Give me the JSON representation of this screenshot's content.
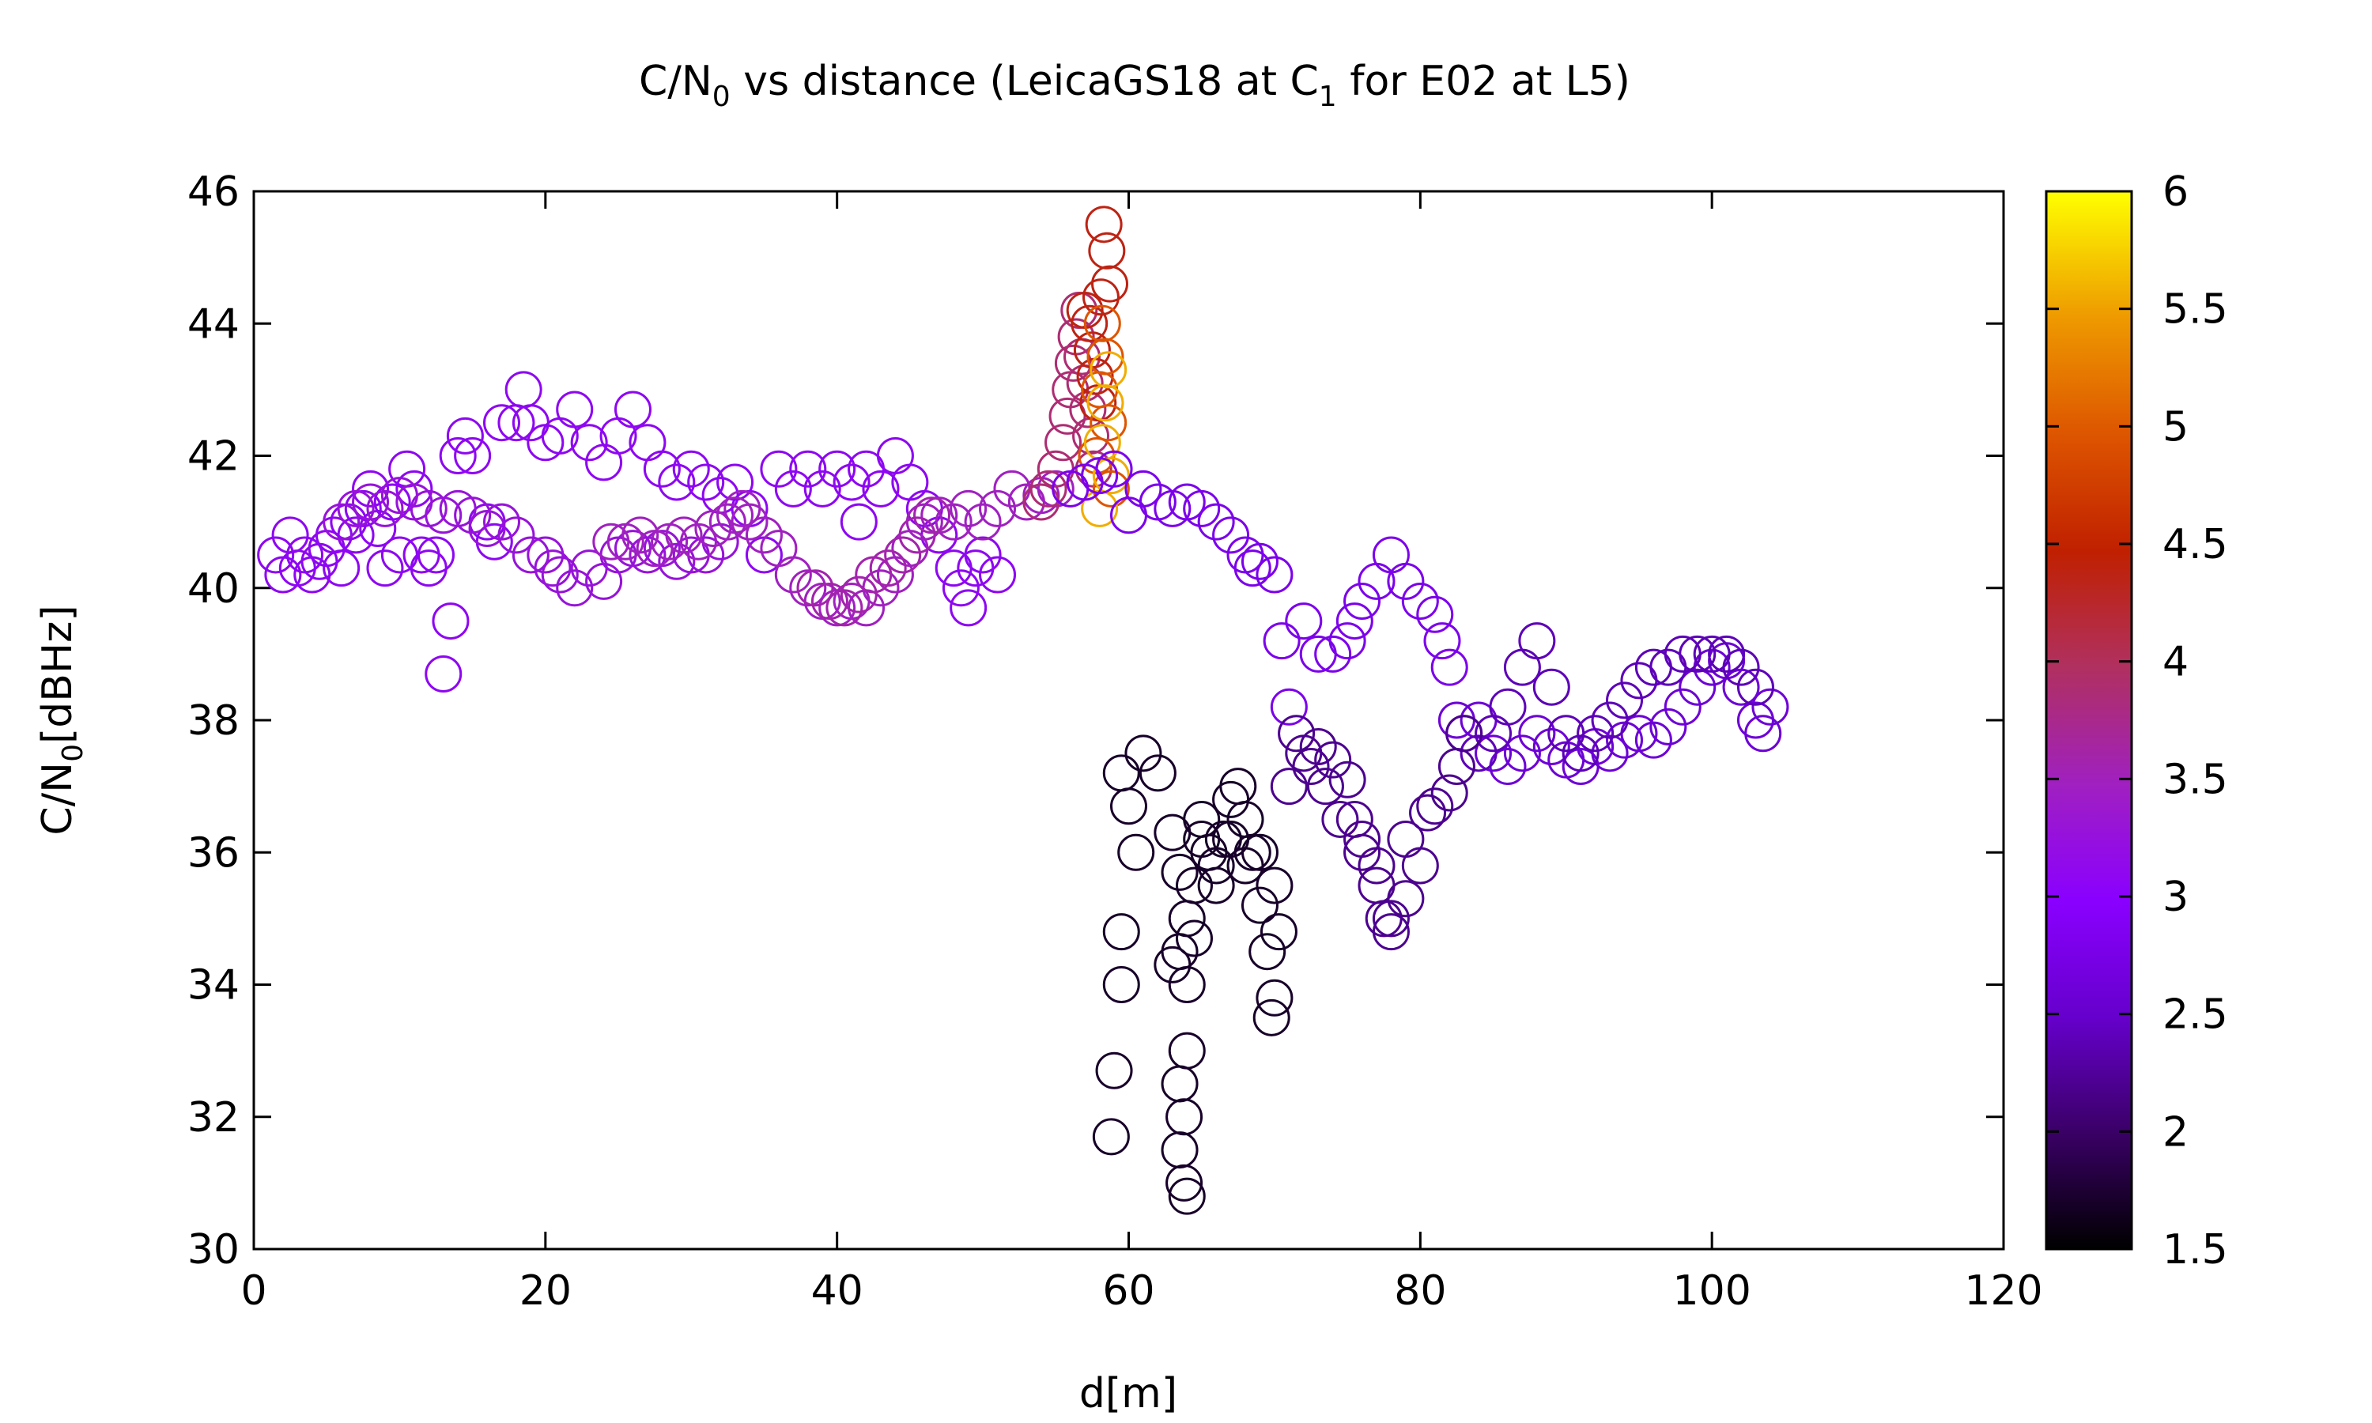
{
  "chart_data": {
    "type": "scatter",
    "title": {
      "main": "C/N",
      "sub1": "0",
      "mid": " vs distance (LeicaGS18 at C",
      "sub2": "1",
      "end": " for E02 at L5)"
    },
    "xlabel": "d[m]",
    "ylabel": {
      "main": "C/N",
      "sub": "0",
      "end": "[dBHz]"
    },
    "xlim": [
      0,
      120
    ],
    "ylim": [
      30,
      46
    ],
    "x_ticks": [
      "0",
      "20",
      "40",
      "60",
      "80",
      "100",
      "120"
    ],
    "y_ticks": [
      "30",
      "32",
      "34",
      "36",
      "38",
      "40",
      "42",
      "44",
      "46"
    ],
    "colorbar": {
      "range": [
        1.5,
        6
      ],
      "ticks": [
        "1.5",
        "2",
        "2.5",
        "3",
        "3.5",
        "4",
        "4.5",
        "5",
        "5.5",
        "6"
      ],
      "palette": [
        "#000000",
        "#3a0066",
        "#6600cc",
        "#8a00ff",
        "#a020c0",
        "#b03060",
        "#c02000",
        "#dd5500",
        "#ee9900",
        "#ffff00"
      ]
    },
    "marker": "open-circle",
    "grid": false,
    "points": [
      [
        1.5,
        40.5,
        3.1
      ],
      [
        2,
        40.2,
        3.1
      ],
      [
        2.5,
        40.8,
        3.1
      ],
      [
        3,
        40.3,
        3.1
      ],
      [
        3.5,
        40.5,
        3.1
      ],
      [
        4,
        40.2,
        3.1
      ],
      [
        4.5,
        40.4,
        3.1
      ],
      [
        5,
        40.6,
        3.1
      ],
      [
        5.5,
        40.8,
        3.1
      ],
      [
        6,
        40.3,
        3.1
      ],
      [
        6.5,
        41,
        3.1
      ],
      [
        7,
        40.8,
        3.1
      ],
      [
        7.5,
        41.2,
        3.1
      ],
      [
        8,
        41.5,
        3.1
      ],
      [
        8.5,
        40.9,
        3.1
      ],
      [
        9,
        40.3,
        3.1
      ],
      [
        9.5,
        41.3,
        3.1
      ],
      [
        10,
        40.5,
        3.1
      ],
      [
        10.5,
        41.8,
        3.1
      ],
      [
        11,
        41.5,
        3.1
      ],
      [
        11.5,
        40.5,
        3.1
      ],
      [
        12,
        40.3,
        3.1
      ],
      [
        12.5,
        40.5,
        3.1
      ],
      [
        13,
        38.7,
        3.1
      ],
      [
        13.5,
        39.5,
        3.1
      ],
      [
        14,
        42,
        3.1
      ],
      [
        14.5,
        42.3,
        3.1
      ],
      [
        15,
        42,
        3.1
      ],
      [
        16,
        41,
        3.1
      ],
      [
        16.5,
        40.7,
        3.1
      ],
      [
        17,
        42.5,
        3.1
      ],
      [
        18,
        42.5,
        3.1
      ],
      [
        18.5,
        43,
        3.1
      ],
      [
        19,
        42.5,
        3.1
      ],
      [
        20,
        42.2,
        3.1
      ],
      [
        21,
        42.3,
        3.1
      ],
      [
        22,
        42.7,
        3.1
      ],
      [
        23,
        42.2,
        3.1
      ],
      [
        24,
        41.9,
        3.1
      ],
      [
        25,
        42.3,
        3.1
      ],
      [
        26,
        42.7,
        3.1
      ],
      [
        27,
        42.2,
        3.1
      ],
      [
        28,
        41.8,
        3.1
      ],
      [
        29,
        41.6,
        3.1
      ],
      [
        30,
        41.8,
        3.1
      ],
      [
        31,
        41.6,
        3.1
      ],
      [
        32,
        41.4,
        3.1
      ],
      [
        33,
        41.6,
        3.1
      ],
      [
        34,
        41.2,
        3.1
      ],
      [
        35,
        40.5,
        3.1
      ],
      [
        36,
        41.8,
        3.1
      ],
      [
        37,
        41.5,
        3.1
      ],
      [
        38,
        41.8,
        3.1
      ],
      [
        39,
        41.5,
        3.1
      ],
      [
        40,
        41.8,
        3.1
      ],
      [
        41,
        41.6,
        3.1
      ],
      [
        41.5,
        41,
        3.1
      ],
      [
        42,
        41.8,
        3.1
      ],
      [
        43,
        41.5,
        3.1
      ],
      [
        44,
        42,
        3.1
      ],
      [
        45,
        41.6,
        3.1
      ],
      [
        46,
        41.2,
        3.1
      ],
      [
        47,
        40.8,
        3.1
      ],
      [
        48,
        40.3,
        3.1
      ],
      [
        48.5,
        40,
        3.1
      ],
      [
        49,
        39.7,
        3.1
      ],
      [
        49.5,
        40.3,
        3.1
      ],
      [
        50,
        40.5,
        3.1
      ],
      [
        51,
        40.2,
        3.1
      ],
      [
        6,
        41,
        3.3
      ],
      [
        7,
        41.2,
        3.3
      ],
      [
        8,
        41.3,
        3.3
      ],
      [
        9,
        41.2,
        3.3
      ],
      [
        10,
        41.4,
        3.3
      ],
      [
        11,
        41.3,
        3.3
      ],
      [
        12,
        41.2,
        3.3
      ],
      [
        13,
        41.1,
        3.3
      ],
      [
        14,
        41.2,
        3.3
      ],
      [
        15,
        41.1,
        3.3
      ],
      [
        16,
        40.9,
        3.3
      ],
      [
        17,
        41,
        3.3
      ],
      [
        18,
        40.8,
        3.3
      ],
      [
        19,
        40.5,
        3.3
      ],
      [
        20,
        40.5,
        3.3
      ],
      [
        20.5,
        40.3,
        3.3
      ],
      [
        21,
        40.2,
        3.3
      ],
      [
        22,
        40,
        3.3
      ],
      [
        23,
        40.3,
        3.3
      ],
      [
        24,
        40.1,
        3.3
      ],
      [
        25,
        40.5,
        3.3
      ],
      [
        26,
        40.6,
        3.3
      ],
      [
        27,
        40.5,
        3.3
      ],
      [
        28,
        40.6,
        3.3
      ],
      [
        29,
        40.4,
        3.3
      ],
      [
        30,
        40.5,
        3.3
      ],
      [
        31,
        40.5,
        3.3
      ],
      [
        32,
        40.7,
        3.3
      ],
      [
        24.5,
        40.7,
        3.5
      ],
      [
        25.5,
        40.7,
        3.5
      ],
      [
        26.5,
        40.8,
        3.5
      ],
      [
        27.5,
        40.6,
        3.5
      ],
      [
        28.5,
        40.7,
        3.5
      ],
      [
        29.5,
        40.8,
        3.5
      ],
      [
        30.5,
        40.7,
        3.5
      ],
      [
        31.5,
        40.9,
        3.5
      ],
      [
        32.5,
        41,
        3.5
      ],
      [
        33,
        41.1,
        3.5
      ],
      [
        33.5,
        41.2,
        3.5
      ],
      [
        34,
        41,
        3.5
      ],
      [
        35,
        40.8,
        3.5
      ],
      [
        36,
        40.6,
        3.5
      ],
      [
        37,
        40.2,
        3.5
      ],
      [
        38,
        40,
        3.5
      ],
      [
        39,
        39.8,
        3.5
      ],
      [
        40,
        39.7,
        3.5
      ],
      [
        41,
        39.8,
        3.5
      ],
      [
        42,
        39.7,
        3.5
      ],
      [
        43,
        40,
        3.5
      ],
      [
        44,
        40.2,
        3.5
      ],
      [
        45,
        40.6,
        3.5
      ],
      [
        46,
        41,
        3.5
      ],
      [
        47,
        41.1,
        3.5
      ],
      [
        48,
        41,
        3.5
      ],
      [
        49,
        41.2,
        3.5
      ],
      [
        50,
        41,
        3.5
      ],
      [
        51,
        41.2,
        3.5
      ],
      [
        52,
        41.5,
        3.5
      ],
      [
        53,
        41.3,
        3.5
      ],
      [
        54,
        41.4,
        3.5
      ],
      [
        55,
        41.5,
        3.5
      ],
      [
        38.5,
        40,
        3.6
      ],
      [
        39.5,
        39.8,
        3.6
      ],
      [
        40.5,
        39.7,
        3.6
      ],
      [
        41.5,
        39.9,
        3.6
      ],
      [
        42.5,
        40.2,
        3.6
      ],
      [
        43.5,
        40.3,
        3.6
      ],
      [
        44.5,
        40.5,
        3.6
      ],
      [
        45.5,
        40.8,
        3.6
      ],
      [
        46.5,
        41.1,
        3.6
      ],
      [
        54,
        41.3,
        3.9
      ],
      [
        54.5,
        41.5,
        3.9
      ],
      [
        55,
        41.8,
        3.9
      ],
      [
        55.5,
        42.2,
        3.9
      ],
      [
        55.8,
        42.6,
        3.9
      ],
      [
        56,
        43,
        3.9
      ],
      [
        56.2,
        43.4,
        3.9
      ],
      [
        56.4,
        43.8,
        3.9
      ],
      [
        56.6,
        44.2,
        3.9
      ],
      [
        56.8,
        43.5,
        3.9
      ],
      [
        57,
        43.1,
        3.9
      ],
      [
        57.2,
        42.7,
        3.9
      ],
      [
        57.4,
        42.3,
        3.9
      ],
      [
        57.6,
        41.8,
        3.9
      ],
      [
        57,
        44.2,
        4.4
      ],
      [
        57.3,
        44,
        4.4
      ],
      [
        57.5,
        43.6,
        4.4
      ],
      [
        57.7,
        43.2,
        4.4
      ],
      [
        57.9,
        42.8,
        4.4
      ],
      [
        58.1,
        44.4,
        4.4
      ],
      [
        58.3,
        45.5,
        4.4
      ],
      [
        58.5,
        45.1,
        4.4
      ],
      [
        58.7,
        44.6,
        4.4
      ],
      [
        57.8,
        42,
        5.0
      ],
      [
        58,
        43,
        5.0
      ],
      [
        58.2,
        44,
        5.0
      ],
      [
        58.4,
        43.5,
        5.0
      ],
      [
        58.6,
        42.5,
        5.0
      ],
      [
        58.8,
        41.5,
        5.0
      ],
      [
        58,
        41.2,
        5.6
      ],
      [
        58.2,
        42.2,
        5.6
      ],
      [
        58.4,
        42.8,
        5.6
      ],
      [
        58.6,
        43.3,
        5.6
      ],
      [
        58.8,
        41.7,
        5.6
      ],
      [
        56,
        41.5,
        2.8
      ],
      [
        57,
        41.6,
        2.8
      ],
      [
        58,
        41.7,
        2.8
      ],
      [
        59,
        41.8,
        2.8
      ],
      [
        60,
        41.1,
        2.8
      ],
      [
        61,
        41.5,
        2.8
      ],
      [
        62,
        41.3,
        2.8
      ],
      [
        63,
        41.2,
        2.8
      ],
      [
        64,
        41.3,
        2.8
      ],
      [
        65,
        41.2,
        2.8
      ],
      [
        66,
        41,
        2.8
      ],
      [
        67,
        40.8,
        2.8
      ],
      [
        68,
        40.5,
        2.8
      ],
      [
        68.5,
        40.3,
        2.8
      ],
      [
        69,
        40.4,
        2.8
      ],
      [
        70,
        40.2,
        2.8
      ],
      [
        70.5,
        39.2,
        2.8
      ],
      [
        71,
        38.2,
        2.8
      ],
      [
        72,
        39.5,
        2.8
      ],
      [
        73,
        39,
        2.8
      ],
      [
        74,
        39,
        2.8
      ],
      [
        75,
        39.2,
        2.8
      ],
      [
        75.5,
        39.5,
        2.8
      ],
      [
        76,
        39.8,
        2.8
      ],
      [
        77,
        40.1,
        2.8
      ],
      [
        78,
        40.5,
        2.8
      ],
      [
        79,
        40.1,
        2.8
      ],
      [
        80,
        39.8,
        2.8
      ],
      [
        81,
        39.6,
        2.8
      ],
      [
        81.5,
        39.2,
        2.8
      ],
      [
        82,
        38.8,
        2.8
      ],
      [
        82.5,
        38,
        2.6
      ],
      [
        83,
        37.8,
        2.6
      ],
      [
        84,
        38,
        2.6
      ],
      [
        85,
        37.5,
        2.6
      ],
      [
        86,
        37.3,
        2.6
      ],
      [
        87,
        37.5,
        2.6
      ],
      [
        88,
        37.8,
        2.6
      ],
      [
        89,
        37.6,
        2.6
      ],
      [
        90,
        37.4,
        2.6
      ],
      [
        91,
        37.3,
        2.6
      ],
      [
        92,
        37.6,
        2.6
      ],
      [
        93,
        37.5,
        2.6
      ],
      [
        94,
        37.7,
        2.6
      ],
      [
        95,
        37.8,
        2.6
      ],
      [
        96,
        37.7,
        2.6
      ],
      [
        97,
        37.9,
        2.6
      ],
      [
        98,
        38.2,
        2.6
      ],
      [
        99,
        38.5,
        2.6
      ],
      [
        100,
        38.8,
        2.6
      ],
      [
        101,
        38.9,
        2.6
      ],
      [
        102,
        38.5,
        2.6
      ],
      [
        103,
        38,
        2.6
      ],
      [
        104,
        38.2,
        2.6
      ],
      [
        103.5,
        37.8,
        2.6
      ],
      [
        84,
        37.5,
        2.4
      ],
      [
        85,
        37.8,
        2.4
      ],
      [
        86,
        38.2,
        2.4
      ],
      [
        87,
        38.8,
        2.4
      ],
      [
        88,
        39.2,
        2.4
      ],
      [
        89,
        38.5,
        2.4
      ],
      [
        90,
        37.8,
        2.4
      ],
      [
        91,
        37.5,
        2.4
      ],
      [
        92,
        37.8,
        2.4
      ],
      [
        93,
        38,
        2.4
      ],
      [
        94,
        38.3,
        2.4
      ],
      [
        95,
        38.6,
        2.4
      ],
      [
        96,
        38.8,
        2.4
      ],
      [
        97,
        38.8,
        2.4
      ],
      [
        98,
        39,
        2.4
      ],
      [
        99,
        39,
        2.4
      ],
      [
        100,
        39,
        2.4
      ],
      [
        101,
        39,
        2.4
      ],
      [
        102,
        38.8,
        2.4
      ],
      [
        103,
        38.5,
        2.4
      ],
      [
        71,
        37,
        2.2
      ],
      [
        72,
        37.5,
        2.2
      ],
      [
        73,
        37.6,
        2.2
      ],
      [
        74,
        37.4,
        2.2
      ],
      [
        75,
        37.1,
        2.2
      ],
      [
        75.5,
        36.5,
        2.2
      ],
      [
        76,
        36,
        2.2
      ],
      [
        77,
        35.5,
        2.2
      ],
      [
        78,
        35,
        2.2
      ],
      [
        79,
        35.3,
        2.2
      ],
      [
        80,
        35.8,
        2.2
      ],
      [
        80.5,
        36.6,
        2.2
      ],
      [
        81,
        36.7,
        2.2
      ],
      [
        82,
        36.9,
        2.2
      ],
      [
        82.5,
        37.3,
        2.2
      ],
      [
        83,
        37.8,
        2.2
      ],
      [
        71.5,
        37.8,
        2.2
      ],
      [
        72.5,
        37.3,
        2.2
      ],
      [
        73.5,
        37,
        2.2
      ],
      [
        74.5,
        36.5,
        2.2
      ],
      [
        76,
        36.2,
        2.2
      ],
      [
        77,
        35.8,
        2.2
      ],
      [
        77.5,
        35,
        2.2
      ],
      [
        78,
        34.8,
        2.2
      ],
      [
        79,
        36.2,
        2.2
      ],
      [
        59.5,
        37.2,
        1.7
      ],
      [
        60,
        36.7,
        1.7
      ],
      [
        60.5,
        36,
        1.7
      ],
      [
        61,
        37.5,
        1.7
      ],
      [
        62,
        37.2,
        1.7
      ],
      [
        63,
        36.3,
        1.7
      ],
      [
        63.5,
        35.7,
        1.7
      ],
      [
        64,
        35,
        1.7
      ],
      [
        64.5,
        34.7,
        1.7
      ],
      [
        65,
        36.5,
        1.7
      ],
      [
        65.5,
        36,
        1.7
      ],
      [
        66,
        35.5,
        1.7
      ],
      [
        66.5,
        36.2,
        1.7
      ],
      [
        67,
        36.8,
        1.7
      ],
      [
        67.5,
        37,
        1.7
      ],
      [
        68,
        36.5,
        1.7
      ],
      [
        68.5,
        36,
        1.7
      ],
      [
        69,
        35.2,
        1.7
      ],
      [
        69.5,
        34.5,
        1.7
      ],
      [
        70,
        33.8,
        1.7
      ],
      [
        70.3,
        34.8,
        1.7
      ],
      [
        69.8,
        33.5,
        1.7
      ],
      [
        59.5,
        34.8,
        1.7
      ],
      [
        59.5,
        34,
        1.7
      ],
      [
        59,
        32.7,
        1.7
      ],
      [
        58.8,
        31.7,
        1.7
      ],
      [
        63,
        34.3,
        1.7
      ],
      [
        63.5,
        34.5,
        1.7
      ],
      [
        64,
        34,
        1.7
      ],
      [
        63.5,
        32.5,
        1.7
      ],
      [
        64,
        33,
        1.7
      ],
      [
        63.8,
        32,
        1.7
      ],
      [
        63.5,
        31.5,
        1.7
      ],
      [
        63.8,
        31,
        1.7
      ],
      [
        64,
        30.8,
        1.7
      ],
      [
        64.5,
        35.5,
        1.7
      ],
      [
        65,
        36.2,
        1.7
      ],
      [
        66,
        35.8,
        1.7
      ],
      [
        67,
        36.2,
        1.7
      ],
      [
        68,
        35.8,
        1.7
      ],
      [
        69,
        36,
        1.7
      ],
      [
        70,
        35.5,
        1.7
      ]
    ]
  }
}
